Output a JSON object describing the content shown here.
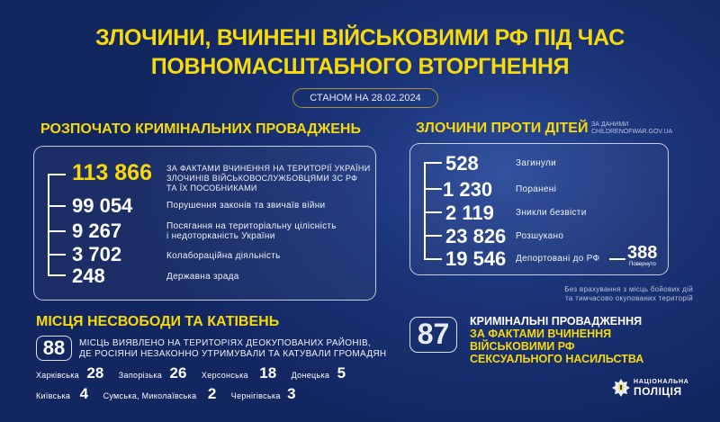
{
  "title": {
    "line1": "ЗЛОЧИНИ, ВЧИНЕНІ ВІЙСЬКОВИМИ РФ ПІД ЧАС",
    "line2": "ПОВНОМАСШТАБНОГО ВТОРГНЕННЯ"
  },
  "date_label": "СТАНОМ НА 28.02.2024",
  "criminal": {
    "heading": "РОЗПОЧАТО КРИМІНАЛЬНИХ ПРОВАДЖЕНЬ",
    "items": [
      {
        "value": "113 866",
        "label1": "ЗА ФАКТАМИ ВЧИНЕННЯ НА ТЕРИТОРІЇ УКРАЇНИ",
        "label2": "ЗЛОЧИНІВ ВІЙСЬКОВОСЛУЖБОВЦЯМИ ЗС РФ",
        "label3": "ТА ЇХ ПОСОБНИКАМИ"
      },
      {
        "value": "99 054",
        "label1": "Порушення законів та звичаїв війни"
      },
      {
        "value": "9 267",
        "label1": "Посягання на територіальну цілісність",
        "label2": "і недоторканість України"
      },
      {
        "value": "3 702",
        "label1": "Колабораційна діяльність"
      },
      {
        "value": "248",
        "label1": "Державна зрада"
      }
    ]
  },
  "children": {
    "heading": "ЗЛОЧИНИ ПРОТИ ДІТЕЙ",
    "source1": "ЗА ДАНИМИ",
    "source2": "CHILDRENOFWAR.GOV.UA",
    "items": [
      {
        "value": "528",
        "label": "Загинули"
      },
      {
        "value": "1 230",
        "label": "Поранені"
      },
      {
        "value": "2 119",
        "label": "Зникли безвісти"
      },
      {
        "value": "23 826",
        "label": "Розшукано"
      },
      {
        "value": "19 546",
        "label": "Депортовані до РФ"
      }
    ],
    "returned": {
      "value": "388",
      "label": "Повернуто"
    },
    "note1": "Без врахування з місць бойових дій",
    "note2": "та тимчасово окупованих територій"
  },
  "places": {
    "heading": "МІСЦЯ НЕСВОБОДИ ТА КАТІВЕНЬ",
    "count": "88",
    "text1": "МІСЦЬ ВИЯВЛЕНО НА ТЕРИТОРІЯХ ДЕОКУПОВАНИХ РАЙОНІВ,",
    "text2": "ДЕ РОСІЯНИ НЕЗАКОННО УТРИМУВАЛИ ТА КАТУВАЛИ ГРОМАДЯН",
    "regions": [
      {
        "name": "Харківська",
        "value": "28"
      },
      {
        "name": "Запорізька",
        "value": "26"
      },
      {
        "name": "Херсонська",
        "value": "18"
      },
      {
        "name": "Донецька",
        "value": "5"
      },
      {
        "name": "Київська",
        "value": "4"
      },
      {
        "name": "Сумська, Миколаївська",
        "value": "2"
      },
      {
        "name": "Чернігівська",
        "value": "3"
      }
    ]
  },
  "sexual": {
    "count": "87",
    "line1": "КРИМІНАЛЬНІ ПРОВАДЖЕННЯ",
    "line2": "ЗА ФАКТАМИ ВЧИНЕННЯ",
    "line3": "ВІЙСЬКОВИМИ РФ",
    "line4": "СЕКСУАЛЬНОГО НАСИЛЬСТВА"
  },
  "logo": {
    "line1": "НАЦІОНАЛЬНА",
    "line2": "ПОЛІЦІЯ"
  },
  "colors": {
    "accent": "#f7d90d",
    "background": "#122660"
  }
}
